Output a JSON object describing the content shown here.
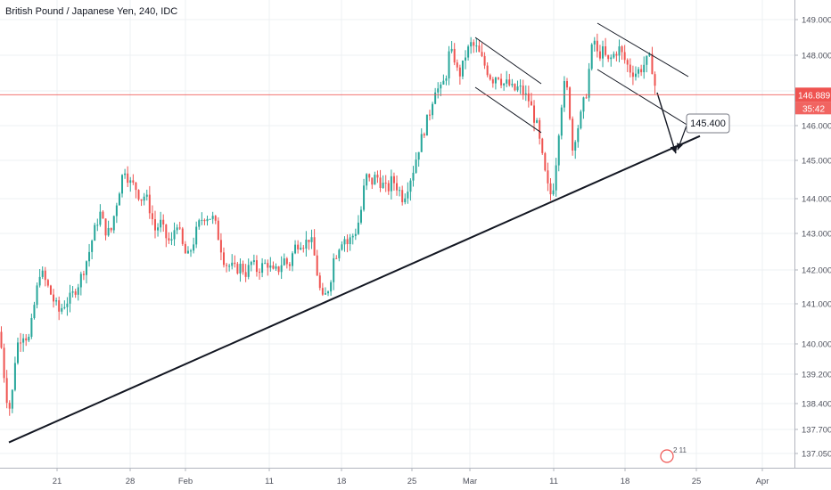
{
  "title": "British Pound / Japanese Yen, 240, IDC",
  "colors": {
    "up": "#26a69a",
    "down": "#ef5350",
    "grid": "#eef0f3",
    "price_line": "#ef5350",
    "trendline": "#000000"
  },
  "chart_data": {
    "type": "candlestick",
    "title": "British Pound / Japanese Yen, 240, IDC",
    "x_tick_labels": [
      "21",
      "28",
      "Feb",
      "11",
      "18",
      "25",
      "Mar",
      "11",
      "18",
      "25",
      "Apr"
    ],
    "y_tick_labels": [
      "149.000",
      "148.000",
      "147.000",
      "146.000",
      "145.000",
      "144.000",
      "143.000",
      "142.000",
      "141.000",
      "140.000",
      "139.200",
      "138.400",
      "137.700",
      "137.050"
    ],
    "ylim": [
      136.9,
      149.3
    ],
    "current_price": "146.889",
    "countdown": "35:42",
    "target_label": "145.400",
    "tv_badge": "2 11",
    "grid": true,
    "path": [
      [
        0,
        140.3
      ],
      [
        3,
        139.5
      ],
      [
        8,
        138.5
      ],
      [
        12,
        138.2
      ],
      [
        18,
        139.9
      ],
      [
        25,
        140.3
      ],
      [
        33,
        140.1
      ],
      [
        40,
        141.2
      ],
      [
        45,
        142.0
      ],
      [
        52,
        141.6
      ],
      [
        60,
        141.1
      ],
      [
        66,
        140.8
      ],
      [
        72,
        141.0
      ],
      [
        80,
        141.2
      ],
      [
        88,
        141.6
      ],
      [
        95,
        142.1
      ],
      [
        100,
        142.5
      ],
      [
        105,
        143.0
      ],
      [
        112,
        143.6
      ],
      [
        118,
        143.1
      ],
      [
        124,
        143.0
      ],
      [
        130,
        143.8
      ],
      [
        136,
        144.5
      ],
      [
        140,
        144.8
      ],
      [
        146,
        144.4
      ],
      [
        152,
        144.3
      ],
      [
        158,
        144.0
      ],
      [
        163,
        144.1
      ],
      [
        168,
        143.7
      ],
      [
        174,
        143.1
      ],
      [
        180,
        143.3
      ],
      [
        186,
        142.9
      ],
      [
        192,
        142.7
      ],
      [
        198,
        143.4
      ],
      [
        204,
        142.7
      ],
      [
        210,
        142.3
      ],
      [
        216,
        142.7
      ],
      [
        222,
        143.2
      ],
      [
        228,
        143.5
      ],
      [
        234,
        143.5
      ],
      [
        240,
        143.4
      ],
      [
        246,
        142.8
      ],
      [
        252,
        142.2
      ],
      [
        258,
        142.1
      ],
      [
        264,
        142.0
      ],
      [
        270,
        142.1
      ],
      [
        276,
        141.9
      ],
      [
        282,
        142.2
      ],
      [
        288,
        142.0
      ],
      [
        294,
        142.1
      ],
      [
        300,
        142.2
      ],
      [
        306,
        141.9
      ],
      [
        312,
        142.0
      ],
      [
        318,
        142.3
      ],
      [
        324,
        142.1
      ],
      [
        330,
        142.6
      ],
      [
        336,
        142.8
      ],
      [
        342,
        142.7
      ],
      [
        346,
        142.9
      ],
      [
        350,
        142.7
      ],
      [
        354,
        142.2
      ],
      [
        358,
        141.5
      ],
      [
        362,
        141.1
      ],
      [
        366,
        141.3
      ],
      [
        370,
        141.6
      ],
      [
        374,
        142.3
      ],
      [
        378,
        142.5
      ],
      [
        382,
        142.8
      ],
      [
        386,
        142.9
      ],
      [
        390,
        142.7
      ],
      [
        394,
        142.9
      ],
      [
        398,
        143.0
      ],
      [
        404,
        143.5
      ],
      [
        410,
        144.6
      ],
      [
        416,
        144.4
      ],
      [
        422,
        144.6
      ],
      [
        428,
        144.4
      ],
      [
        434,
        144.2
      ],
      [
        440,
        144.5
      ],
      [
        446,
        144.3
      ],
      [
        452,
        144.0
      ],
      [
        458,
        144.4
      ],
      [
        464,
        144.8
      ],
      [
        470,
        145.4
      ],
      [
        476,
        145.9
      ],
      [
        482,
        146.4
      ],
      [
        488,
        147.1
      ],
      [
        494,
        147.0
      ],
      [
        500,
        147.4
      ],
      [
        504,
        148.1
      ],
      [
        510,
        147.9
      ],
      [
        514,
        147.4
      ],
      [
        518,
        147.6
      ],
      [
        522,
        148.0
      ],
      [
        528,
        148.3
      ],
      [
        534,
        148.2
      ],
      [
        540,
        147.9
      ],
      [
        546,
        147.6
      ],
      [
        552,
        147.3
      ],
      [
        558,
        147.5
      ],
      [
        564,
        147.2
      ],
      [
        570,
        147.2
      ],
      [
        576,
        147.0
      ],
      [
        582,
        147.1
      ],
      [
        588,
        146.9
      ],
      [
        594,
        146.7
      ],
      [
        598,
        146.3
      ],
      [
        602,
        146.0
      ],
      [
        606,
        145.4
      ],
      [
        610,
        144.8
      ],
      [
        614,
        144.3
      ],
      [
        618,
        144.1
      ],
      [
        622,
        144.5
      ],
      [
        626,
        145.7
      ],
      [
        630,
        146.7
      ],
      [
        634,
        147.3
      ],
      [
        638,
        146.7
      ],
      [
        642,
        145.3
      ],
      [
        646,
        145.8
      ],
      [
        650,
        146.1
      ],
      [
        654,
        146.6
      ],
      [
        658,
        147.0
      ],
      [
        662,
        147.9
      ],
      [
        666,
        148.5
      ],
      [
        670,
        148.0
      ],
      [
        676,
        148.1
      ],
      [
        682,
        147.8
      ],
      [
        688,
        148.0
      ],
      [
        694,
        148.2
      ],
      [
        700,
        147.9
      ],
      [
        706,
        147.6
      ],
      [
        712,
        147.5
      ],
      [
        718,
        147.6
      ],
      [
        724,
        147.8
      ],
      [
        728,
        147.9
      ],
      [
        732,
        147.6
      ],
      [
        736,
        146.9
      ]
    ]
  },
  "annotations": {
    "trendline": {
      "x": [
        10,
        785
      ],
      "y": [
        137.35,
        145.7
      ]
    },
    "channel_1_upper": {
      "x": [
        533,
        607
      ],
      "y": [
        148.5,
        147.2
      ]
    },
    "channel_1_lower": {
      "x": [
        533,
        607
      ],
      "y": [
        147.1,
        145.8
      ]
    },
    "channel_2_upper": {
      "x": [
        670,
        772
      ],
      "y": [
        148.9,
        147.4
      ]
    },
    "channel_2_lower": {
      "x": [
        670,
        772
      ],
      "y": [
        147.6,
        146.0
      ]
    },
    "arrow_1": {
      "x": [
        737,
        758
      ],
      "y": [
        146.95,
        145.2
      ]
    },
    "arrow_2": {
      "x": [
        770,
        760
      ],
      "y": [
        146.0,
        145.3
      ]
    }
  }
}
